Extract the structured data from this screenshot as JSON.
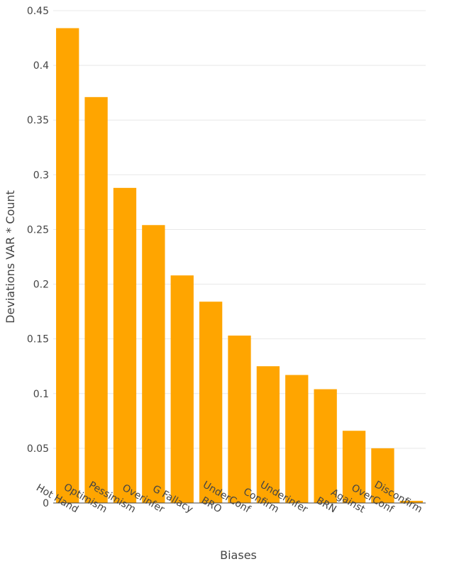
{
  "chart_data": {
    "type": "bar",
    "title": "",
    "xlabel": "Biases",
    "ylabel": "Deviations VAR * Count",
    "categories": [
      "Hot Hand",
      "Optimism",
      "Pessimism",
      "Overinfer",
      "G Fallacy",
      "BRO",
      "UnderConf",
      "Confirm",
      "Underinfer",
      "BRN",
      "Against",
      "OverConf",
      "Disconfirm"
    ],
    "values": [
      0.434,
      0.371,
      0.288,
      0.254,
      0.208,
      0.184,
      0.153,
      0.125,
      0.117,
      0.104,
      0.066,
      0.05,
      0.002
    ],
    "ylim": [
      0,
      0.45
    ],
    "yticks": [
      0,
      0.05,
      0.1,
      0.15,
      0.2,
      0.25,
      0.3,
      0.35,
      0.4,
      0.45
    ],
    "ytick_labels": [
      "0",
      "0.05",
      "0.1",
      "0.15",
      "0.2",
      "0.25",
      "0.3",
      "0.35",
      "0.4",
      "0.45"
    ],
    "grid": true,
    "bar_color": "#FFA500"
  }
}
